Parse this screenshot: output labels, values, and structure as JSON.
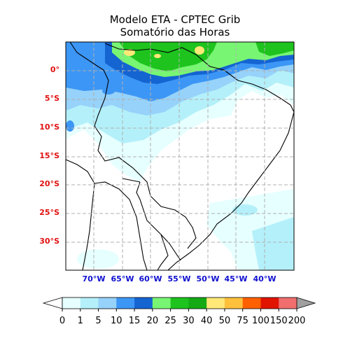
{
  "title": {
    "line1": "Modelo ETA - CPTEC Grib",
    "line2": "Somatório das Horas"
  },
  "map": {
    "lat_labels": [
      "0°",
      "5°S",
      "10°S",
      "15°S",
      "20°S",
      "25°S",
      "30°S"
    ],
    "lon_labels": [
      "70°W",
      "65°W",
      "60°W",
      "55°W",
      "50°W",
      "45°W",
      "40°W"
    ],
    "grid": true,
    "lat_label_color": "#e01010",
    "lon_label_color": "#1010d0"
  },
  "colorbar": {
    "ticks": [
      "0",
      "1",
      "5",
      "10",
      "15",
      "20",
      "25",
      "30",
      "40",
      "50",
      "75",
      "100",
      "150",
      "200"
    ],
    "colors": [
      "#e6ffff",
      "#b4f0fa",
      "#96d2fa",
      "#3c96f5",
      "#1464d2",
      "#78f573",
      "#1ec31e",
      "#14aa14",
      "#ffe878",
      "#ffc03c",
      "#ff6000",
      "#e11400",
      "#f06e6e"
    ],
    "under_color": "#ffffff",
    "over_color": "#a0a0a0",
    "extend": "both"
  }
}
